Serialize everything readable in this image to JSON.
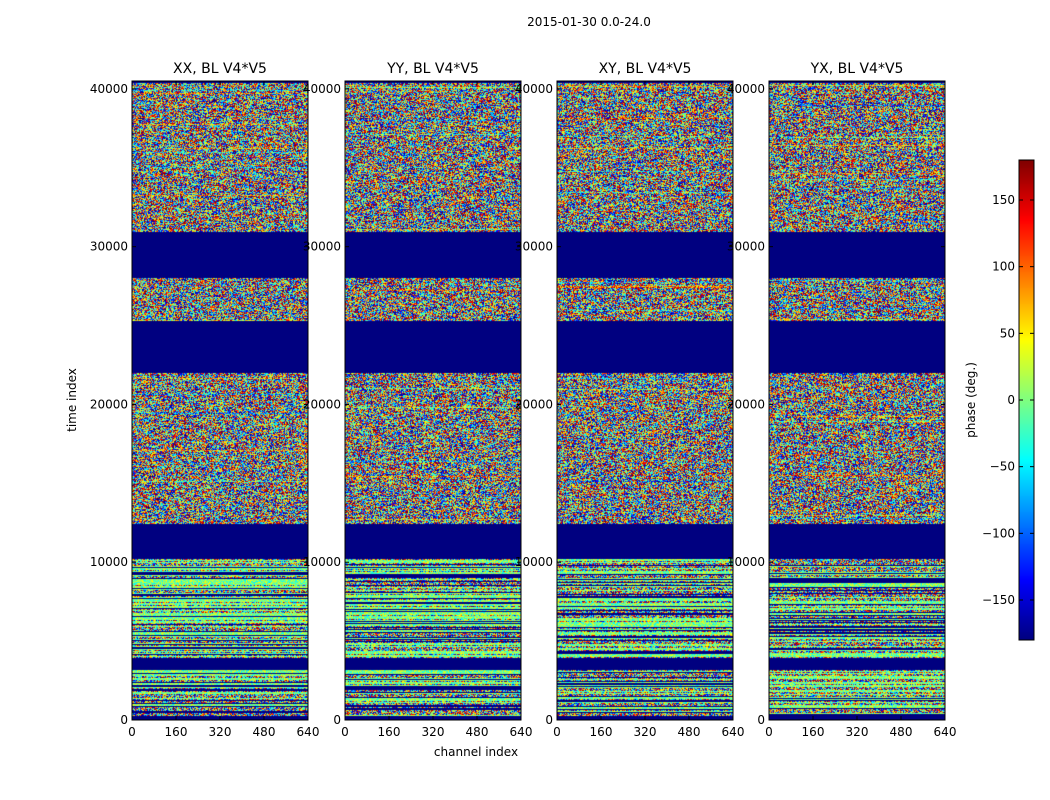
{
  "chart_data": {
    "type": "heatmap",
    "suptitle": "2015-01-30 0.0-24.0",
    "panels": [
      {
        "title": "XX, BL V4*V5",
        "seed": 11,
        "mode": "xx"
      },
      {
        "title": "YY, BL V4*V5",
        "seed": 23,
        "mode": "yy"
      },
      {
        "title": "XY, BL V4*V5",
        "seed": 37,
        "mode": "xy"
      },
      {
        "title": "YX, BL V4*V5",
        "seed": 41,
        "mode": "yx"
      }
    ],
    "xlabel": "channel index",
    "ylabel": "time index",
    "xlim": [
      0,
      640
    ],
    "ylim": [
      0,
      40500
    ],
    "xticks": [
      0,
      160,
      320,
      480,
      640
    ],
    "xtick_labels": [
      "0",
      "160",
      "320",
      "480",
      "640"
    ],
    "yticks": [
      0,
      10000,
      20000,
      30000,
      40000
    ],
    "ytick_labels": [
      "0",
      "10000",
      "20000",
      "30000",
      "40000"
    ],
    "blank_time_ranges": [
      [
        0,
        250
      ],
      [
        3200,
        3900
      ],
      [
        10200,
        12400
      ],
      [
        22000,
        25300
      ],
      [
        28000,
        30900
      ]
    ],
    "structured_time_ranges": [
      [
        0,
        12400
      ]
    ],
    "colorbar": {
      "label": "phase (deg.)",
      "range": [
        -180,
        180
      ],
      "ticks": [
        150,
        100,
        50,
        0,
        -50,
        -100,
        -150
      ],
      "tick_labels": [
        "150",
        "100",
        "50",
        "0",
        "−50",
        "−100",
        "−150"
      ],
      "colormap": "jet"
    }
  }
}
